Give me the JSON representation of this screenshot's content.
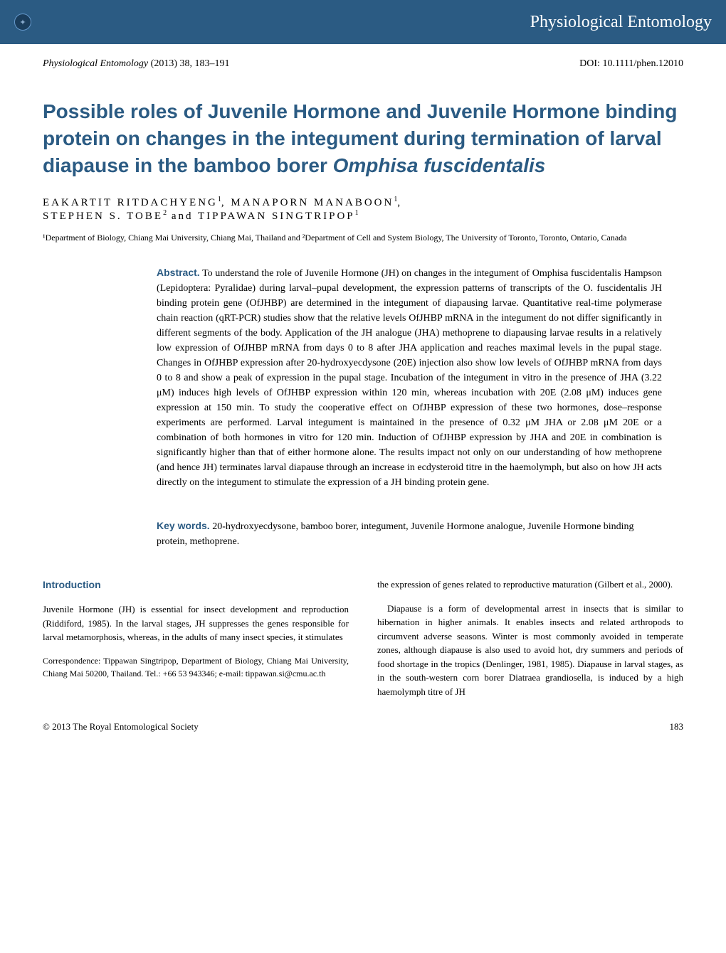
{
  "header": {
    "journal_display": "Physiological Entomology",
    "decorative_numbers": " "
  },
  "citation": {
    "journal": "Physiological Entomology",
    "year_vol_pages": " (2013) 38, 183–191",
    "doi_label": "DOI: 10.1111/phen.12010"
  },
  "title": "Possible roles of Juvenile Hormone and Juvenile Hormone binding protein on changes in the integument during termination of larval diapause in the bamboo borer Omphisa fuscidentalis",
  "title_italic_species": "Omphisa fuscidentalis",
  "authors": {
    "a1": "EAKARTIT RITDACHYENG",
    "s1": "1",
    "a2": "MANAPORN MANABOON",
    "s2": "1",
    "a3": "STEPHEN S. TOBE",
    "s3": "2",
    "a4": "TIPPAWAN SINGTRIPOP",
    "s4": "1"
  },
  "affiliations": "¹Department of Biology, Chiang Mai University, Chiang Mai, Thailand  and  ²Department of Cell and System Biology, The University of Toronto, Toronto, Ontario, Canada",
  "abstract": {
    "label": "Abstract.",
    "text": " To understand the role of Juvenile Hormone (JH) on changes in the integument of Omphisa fuscidentalis Hampson (Lepidoptera: Pyralidae) during larval–pupal development, the expression patterns of transcripts of the O. fuscidentalis JH binding protein gene (OfJHBP) are determined in the integument of diapausing larvae. Quantitative real-time polymerase chain reaction (qRT-PCR) studies show that the relative levels OfJHBP mRNA in the integument do not differ significantly in different segments of the body. Application of the JH analogue (JHA) methoprene to diapausing larvae results in a relatively low expression of OfJHBP mRNA from days 0 to 8 after JHA application and reaches maximal levels in the pupal stage. Changes in OfJHBP expression after 20-hydroxyecdysone (20E) injection also show low levels of OfJHBP mRNA from days 0 to 8 and show a peak of expression in the pupal stage. Incubation of the integument in vitro in the presence of JHA (3.22 μM) induces high levels of OfJHBP expression within 120 min, whereas incubation with 20E (2.08 μM) induces gene expression at 150 min. To study the cooperative effect on OfJHBP expression of these two hormones, dose–response experiments are performed. Larval integument is maintained in the presence of 0.32 μM JHA or 2.08 μM 20E or a combination of both hormones in vitro for 120 min. Induction of OfJHBP expression by JHA and 20E in combination is significantly higher than that of either hormone alone. The results impact not only on our understanding of how methoprene (and hence JH) terminates larval diapause through an increase in ecdysteroid titre in the haemolymph, but also on how JH acts directly on the integument to stimulate the expression of a JH binding protein gene."
  },
  "keywords": {
    "label": "Key words.",
    "text": " 20-hydroxyecdysone, bamboo borer, integument, Juvenile Hormone analogue, Juvenile Hormone binding protein, methoprene."
  },
  "intro": {
    "heading": "Introduction",
    "left_p1": "Juvenile Hormone (JH) is essential for insect development and reproduction (Riddiford, 1985). In the larval stages, JH suppresses the genes responsible for larval metamorphosis, whereas, in the adults of many insect species, it stimulates",
    "correspondence": "Correspondence: Tippawan Singtripop, Department of Biology, Chiang Mai University, Chiang Mai 50200, Thailand. Tel.: +66 53 943346; e-mail: tippawan.si@cmu.ac.th",
    "right_p1": "the expression of genes related to reproductive maturation (Gilbert et al., 2000).",
    "right_p2": "Diapause is a form of developmental arrest in insects that is similar to hibernation in higher animals. It enables insects and related arthropods to circumvent adverse seasons. Winter is most commonly avoided in temperate zones, although diapause is also used to avoid hot, dry summers and periods of food shortage in the tropics (Denlinger, 1981, 1985). Diapause in larval stages, as in the south-western corn borer Diatraea grandiosella, is induced by a high haemolymph titre of JH"
  },
  "footer": {
    "copyright": "© 2013 The Royal Entomological Society",
    "page": "183"
  },
  "colors": {
    "brand": "#2b5b83",
    "header_bg": "#2b5b83",
    "text": "#000000"
  }
}
